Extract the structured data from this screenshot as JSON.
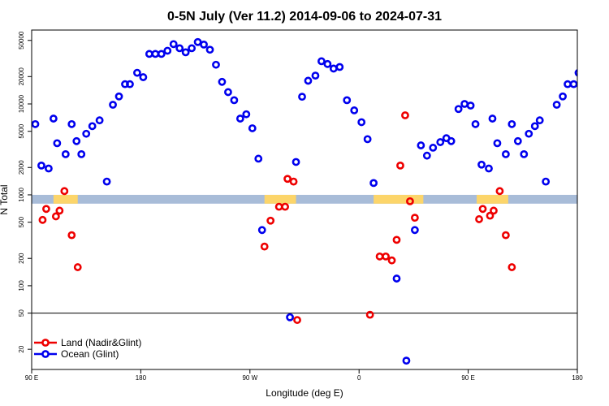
{
  "chart_data": {
    "type": "scatter",
    "title": "0-5N July (Ver 11.2)   2014-09-06 to 2024-07-31",
    "xlabel": "Longitude (deg E)",
    "ylabel": "N Total",
    "x_ticks": [
      {
        "value": 90,
        "label": "90 E"
      },
      {
        "value": 180,
        "label": "180"
      },
      {
        "value": 270,
        "label": "90 W"
      },
      {
        "value": 360,
        "label": "0"
      },
      {
        "value": 450,
        "label": "90 E"
      },
      {
        "value": 540,
        "label": "180"
      }
    ],
    "xlim": [
      90,
      540
    ],
    "y_scale": "log",
    "ylim": [
      12,
      65000
    ],
    "y_ticks": [
      20,
      50,
      100,
      200,
      500,
      1000,
      2000,
      5000,
      10000,
      20000,
      50000
    ],
    "hline": 50,
    "colors": {
      "land": "#ee0000",
      "ocean": "#0000ee",
      "band": "#a8bcd8",
      "land_mask": "#fcd56a",
      "frame": "#000000"
    },
    "band": {
      "y_low": 800,
      "y_high": 1000
    },
    "land_segments": [
      [
        108,
        128
      ],
      [
        282,
        308
      ],
      [
        372,
        413
      ],
      [
        457,
        483
      ]
    ],
    "legend": [
      {
        "name": "Land (Nadir&Glint)",
        "color": "#ee0000",
        "icon": "circle-line"
      },
      {
        "name": "Ocean (Glint)",
        "color": "#0000ee",
        "icon": "circle-line"
      }
    ],
    "series": [
      {
        "name": "Land (Nadir&Glint)",
        "color": "#ee0000",
        "points": [
          [
            99,
            530
          ],
          [
            102,
            700
          ],
          [
            110,
            580
          ],
          [
            113,
            670
          ],
          [
            117,
            1100
          ],
          [
            123,
            360
          ],
          [
            128,
            160
          ],
          [
            282,
            270
          ],
          [
            287,
            520
          ],
          [
            294,
            740
          ],
          [
            299,
            740
          ],
          [
            301,
            1500
          ],
          [
            306,
            1400
          ],
          [
            309,
            42
          ],
          [
            369,
            48
          ],
          [
            377,
            210
          ],
          [
            382,
            210
          ],
          [
            387,
            190
          ],
          [
            391,
            320
          ],
          [
            394,
            2100
          ],
          [
            398,
            7500
          ],
          [
            402,
            850
          ],
          [
            406,
            560
          ],
          [
            459,
            540
          ],
          [
            462,
            700
          ],
          [
            468,
            590
          ],
          [
            471,
            670
          ],
          [
            476,
            1100
          ],
          [
            481,
            360
          ],
          [
            486,
            160
          ]
        ]
      },
      {
        "name": "Ocean (Glint)",
        "color": "#0000ee",
        "points": [
          [
            93,
            6000
          ],
          [
            98,
            2100
          ],
          [
            104,
            1950
          ],
          [
            108,
            6900
          ],
          [
            111,
            3700
          ],
          [
            118,
            2800
          ],
          [
            123,
            6000
          ],
          [
            127,
            3900
          ],
          [
            131,
            2800
          ],
          [
            135,
            4700
          ],
          [
            140,
            5700
          ],
          [
            146,
            6600
          ],
          [
            152,
            1400
          ],
          [
            157,
            9800
          ],
          [
            162,
            12100
          ],
          [
            167,
            16500
          ],
          [
            171,
            16500
          ],
          [
            177,
            22000
          ],
          [
            182,
            19700
          ],
          [
            187,
            35500
          ],
          [
            192,
            35500
          ],
          [
            197,
            35500
          ],
          [
            202,
            38500
          ],
          [
            207,
            45500
          ],
          [
            212,
            41000
          ],
          [
            217,
            37000
          ],
          [
            222,
            41000
          ],
          [
            227,
            48000
          ],
          [
            232,
            45000
          ],
          [
            237,
            39500
          ],
          [
            242,
            27000
          ],
          [
            247,
            17500
          ],
          [
            252,
            13500
          ],
          [
            257,
            11000
          ],
          [
            262,
            6900
          ],
          [
            267,
            7700
          ],
          [
            272,
            5400
          ],
          [
            277,
            2500
          ],
          [
            280,
            410
          ],
          [
            303,
            45
          ],
          [
            308,
            2300
          ],
          [
            313,
            12000
          ],
          [
            318,
            18000
          ],
          [
            324,
            20500
          ],
          [
            329,
            29500
          ],
          [
            334,
            27500
          ],
          [
            339,
            24500
          ],
          [
            344,
            25500
          ],
          [
            350,
            11000
          ],
          [
            356,
            8500
          ],
          [
            362,
            6300
          ],
          [
            367,
            4100
          ],
          [
            372,
            1350
          ],
          [
            391,
            120
          ],
          [
            399,
            15
          ],
          [
            406,
            410
          ],
          [
            411,
            3500
          ],
          [
            416,
            2700
          ],
          [
            421,
            3300
          ],
          [
            427,
            3800
          ],
          [
            432,
            4200
          ],
          [
            436,
            3900
          ],
          [
            442,
            8800
          ],
          [
            447,
            10000
          ],
          [
            452,
            9600
          ],
          [
            456,
            6000
          ],
          [
            461,
            2150
          ],
          [
            467,
            1950
          ],
          [
            470,
            6900
          ],
          [
            474,
            3700
          ],
          [
            481,
            2800
          ],
          [
            486,
            6000
          ],
          [
            491,
            3900
          ],
          [
            496,
            2800
          ],
          [
            500,
            4700
          ],
          [
            505,
            5700
          ],
          [
            509,
            6600
          ],
          [
            514,
            1400
          ],
          [
            523,
            9800
          ],
          [
            528,
            12100
          ],
          [
            532,
            16500
          ],
          [
            537,
            16500
          ],
          [
            541,
            22000
          ]
        ]
      }
    ]
  }
}
